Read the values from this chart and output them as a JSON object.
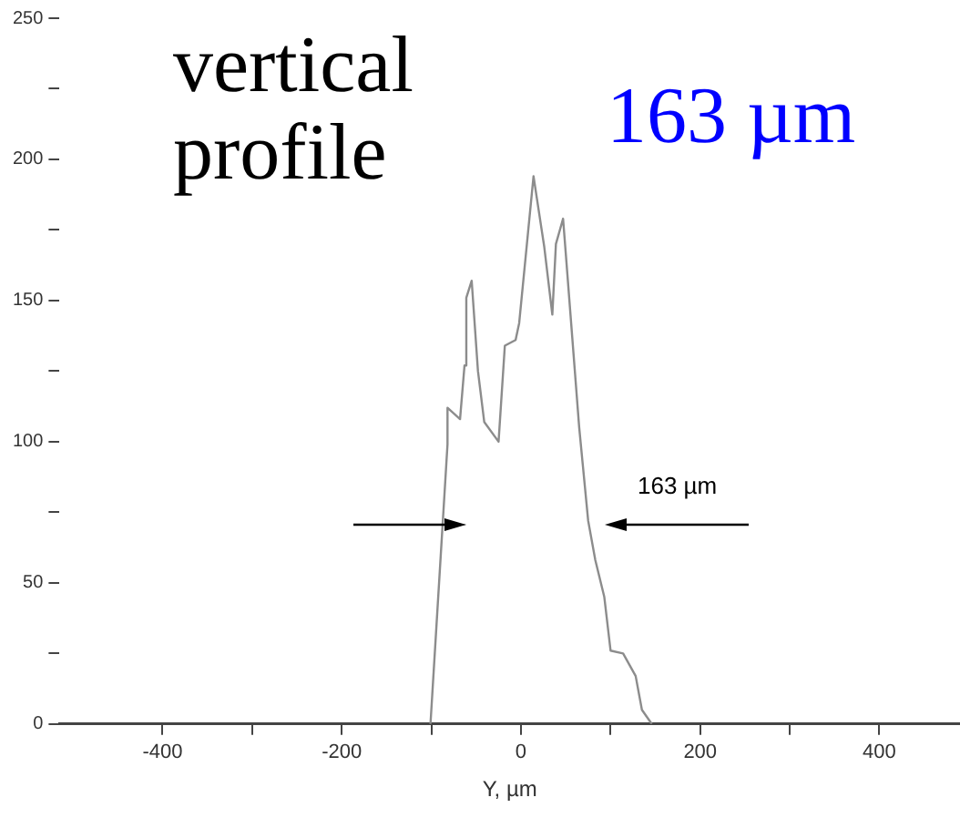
{
  "chart_data": {
    "type": "line",
    "xlabel": "Y, µm",
    "color": "#8c8c8c",
    "annotations": [
      "vertical profile",
      "163 µm",
      "163 µm"
    ],
    "x": [
      -101,
      -82,
      -82,
      -68,
      -63,
      -61,
      -55,
      -48,
      -41,
      -25,
      -18,
      -6,
      -2,
      14,
      26,
      35,
      39,
      47,
      56,
      65,
      75,
      83,
      93,
      100,
      114,
      128,
      135,
      146
    ],
    "values": [
      0,
      99,
      112,
      108,
      127,
      151,
      157,
      125,
      107,
      100,
      134,
      136,
      142,
      194,
      169,
      145,
      170,
      179,
      142,
      105,
      72,
      58,
      45,
      26,
      25,
      17,
      5,
      0
    ],
    "xlim": [
      -515,
      490
    ],
    "xticks": [
      -400,
      {
        "value": -300,
        "label": null
      },
      -200,
      {
        "value": -100,
        "label": null
      },
      0,
      {
        "value": 100,
        "label": null
      },
      200,
      {
        "value": 300,
        "label": null
      },
      400
    ],
    "ylim": [
      0,
      250
    ],
    "yticks": [
      0,
      {
        "value": 25,
        "label": null
      },
      50,
      {
        "value": 75,
        "label": null
      },
      100,
      {
        "value": 125,
        "label": null
      },
      150,
      {
        "value": 175,
        "label": null
      },
      200,
      {
        "value": 225,
        "label": null
      },
      250
    ],
    "grid": false,
    "legend": false,
    "marker": "none",
    "line_style": "solid"
  }
}
